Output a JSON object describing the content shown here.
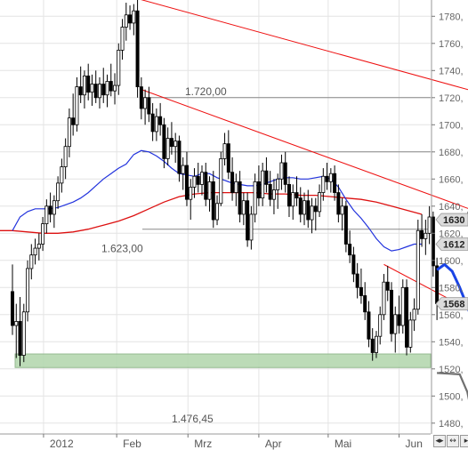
{
  "chart_data": {
    "type": "candlestick",
    "x_ticks": [
      "2012",
      "Feb",
      "Mrz",
      "Apr",
      "Mai",
      "Jun"
    ],
    "y_ticks": [
      "1780",
      "1760",
      "1740",
      "1720",
      "1700",
      "1680",
      "1660",
      "1640",
      "1620",
      "1600",
      "1580",
      "1560",
      "1540",
      "1520",
      "1500",
      "1480"
    ],
    "y_tick_labels_shown": [
      "1780,",
      "1760,",
      "1740,",
      "1720,",
      "1700,",
      "1680,",
      "1660,",
      "1640,",
      "1620,",
      "1600,",
      "1580,",
      "1560,",
      "1540,",
      "1520,",
      "1500,",
      "1480,"
    ],
    "ylim": [
      1472,
      1792
    ],
    "horizontal_levels": [
      {
        "value": 1720.0,
        "label": "1.720,00"
      },
      {
        "value": 1680.0,
        "label": ""
      },
      {
        "value": 1623.0,
        "label": "1.623,00"
      }
    ],
    "bottom_label": "1.476,45",
    "support_zone": {
      "from": 1521,
      "to": 1531
    },
    "price_tags": [
      {
        "value": 1630,
        "label": "1630"
      },
      {
        "value": 1612,
        "label": "1612"
      },
      {
        "value": 1568,
        "label": "1568"
      }
    ],
    "candles": [
      {
        "c": "dec28",
        "o": 1577,
        "h": 1597,
        "l": 1545,
        "cl": 1552
      },
      {
        "c": "dec31",
        "o": 1552,
        "h": 1568,
        "l": 1528,
        "cl": 1555
      },
      {
        "c": "jan02",
        "o": 1555,
        "h": 1573,
        "l": 1522,
        "cl": 1530
      },
      {
        "c": "jan03",
        "o": 1530,
        "h": 1568,
        "l": 1525,
        "cl": 1562
      },
      {
        "c": "jan04",
        "o": 1562,
        "h": 1600,
        "l": 1555,
        "cl": 1594
      },
      {
        "c": "jan05",
        "o": 1594,
        "h": 1612,
        "l": 1586,
        "cl": 1604
      },
      {
        "c": "jan06",
        "o": 1604,
        "h": 1616,
        "l": 1597,
        "cl": 1609
      },
      {
        "c": "jan09",
        "o": 1609,
        "h": 1620,
        "l": 1600,
        "cl": 1612
      },
      {
        "c": "jan10",
        "o": 1612,
        "h": 1632,
        "l": 1607,
        "cl": 1627
      },
      {
        "c": "jan11",
        "o": 1627,
        "h": 1645,
        "l": 1620,
        "cl": 1640
      },
      {
        "c": "jan12",
        "o": 1640,
        "h": 1650,
        "l": 1628,
        "cl": 1634
      },
      {
        "c": "jan13",
        "o": 1634,
        "h": 1648,
        "l": 1624,
        "cl": 1644
      },
      {
        "c": "jan16",
        "o": 1644,
        "h": 1662,
        "l": 1638,
        "cl": 1657
      },
      {
        "c": "jan17",
        "o": 1657,
        "h": 1675,
        "l": 1650,
        "cl": 1669
      },
      {
        "c": "jan18",
        "o": 1669,
        "h": 1690,
        "l": 1660,
        "cl": 1684
      },
      {
        "c": "jan19",
        "o": 1684,
        "h": 1712,
        "l": 1676,
        "cl": 1705
      },
      {
        "c": "jan20",
        "o": 1705,
        "h": 1723,
        "l": 1692,
        "cl": 1700
      },
      {
        "c": "jan23",
        "o": 1700,
        "h": 1735,
        "l": 1695,
        "cl": 1728
      },
      {
        "c": "jan24",
        "o": 1728,
        "h": 1743,
        "l": 1716,
        "cl": 1722
      },
      {
        "c": "jan25",
        "o": 1722,
        "h": 1740,
        "l": 1712,
        "cl": 1736
      },
      {
        "c": "jan26",
        "o": 1736,
        "h": 1745,
        "l": 1718,
        "cl": 1724
      },
      {
        "c": "jan27",
        "o": 1724,
        "h": 1737,
        "l": 1714,
        "cl": 1730
      },
      {
        "c": "jan30",
        "o": 1730,
        "h": 1740,
        "l": 1716,
        "cl": 1720
      },
      {
        "c": "jan31",
        "o": 1720,
        "h": 1735,
        "l": 1712,
        "cl": 1730
      },
      {
        "c": "feb01",
        "o": 1730,
        "h": 1742,
        "l": 1716,
        "cl": 1722
      },
      {
        "c": "feb02",
        "o": 1722,
        "h": 1737,
        "l": 1713,
        "cl": 1732
      },
      {
        "c": "feb03",
        "o": 1732,
        "h": 1745,
        "l": 1721,
        "cl": 1725
      },
      {
        "c": "feb06",
        "o": 1725,
        "h": 1738,
        "l": 1715,
        "cl": 1729
      },
      {
        "c": "feb07",
        "o": 1729,
        "h": 1760,
        "l": 1722,
        "cl": 1755
      },
      {
        "c": "feb08",
        "o": 1755,
        "h": 1778,
        "l": 1748,
        "cl": 1772
      },
      {
        "c": "feb09",
        "o": 1772,
        "h": 1790,
        "l": 1762,
        "cl": 1781
      },
      {
        "c": "feb10",
        "o": 1781,
        "h": 1788,
        "l": 1770,
        "cl": 1775
      },
      {
        "c": "feb13",
        "o": 1775,
        "h": 1789,
        "l": 1766,
        "cl": 1784
      },
      {
        "c": "feb14",
        "o": 1784,
        "h": 1792,
        "l": 1720,
        "cl": 1728
      },
      {
        "c": "feb15",
        "o": 1728,
        "h": 1735,
        "l": 1704,
        "cl": 1712
      },
      {
        "c": "feb16",
        "o": 1712,
        "h": 1726,
        "l": 1700,
        "cl": 1720
      },
      {
        "c": "feb17",
        "o": 1720,
        "h": 1728,
        "l": 1702,
        "cl": 1708
      },
      {
        "c": "feb20",
        "o": 1708,
        "h": 1716,
        "l": 1688,
        "cl": 1695
      },
      {
        "c": "feb21",
        "o": 1695,
        "h": 1712,
        "l": 1688,
        "cl": 1706
      },
      {
        "c": "feb22",
        "o": 1706,
        "h": 1716,
        "l": 1692,
        "cl": 1700
      },
      {
        "c": "feb23",
        "o": 1700,
        "h": 1705,
        "l": 1668,
        "cl": 1675
      },
      {
        "c": "feb24",
        "o": 1675,
        "h": 1698,
        "l": 1670,
        "cl": 1690
      },
      {
        "c": "feb27",
        "o": 1690,
        "h": 1702,
        "l": 1678,
        "cl": 1684
      },
      {
        "c": "feb28",
        "o": 1684,
        "h": 1694,
        "l": 1672,
        "cl": 1688
      },
      {
        "c": "feb29",
        "o": 1688,
        "h": 1692,
        "l": 1658,
        "cl": 1664
      },
      {
        "c": "mrz01",
        "o": 1664,
        "h": 1676,
        "l": 1652,
        "cl": 1670
      },
      {
        "c": "mrz02",
        "o": 1670,
        "h": 1680,
        "l": 1640,
        "cl": 1645
      },
      {
        "c": "mrz05",
        "o": 1645,
        "h": 1660,
        "l": 1630,
        "cl": 1654
      },
      {
        "c": "mrz06",
        "o": 1654,
        "h": 1668,
        "l": 1646,
        "cl": 1662
      },
      {
        "c": "mrz07",
        "o": 1662,
        "h": 1672,
        "l": 1650,
        "cl": 1656
      },
      {
        "c": "mrz08",
        "o": 1656,
        "h": 1670,
        "l": 1648,
        "cl": 1665
      },
      {
        "c": "mrz09",
        "o": 1665,
        "h": 1672,
        "l": 1640,
        "cl": 1645
      },
      {
        "c": "mrz12",
        "o": 1645,
        "h": 1662,
        "l": 1636,
        "cl": 1658
      },
      {
        "c": "mrz13",
        "o": 1658,
        "h": 1666,
        "l": 1624,
        "cl": 1630
      },
      {
        "c": "mrz14",
        "o": 1630,
        "h": 1648,
        "l": 1626,
        "cl": 1642
      },
      {
        "c": "mrz15",
        "o": 1642,
        "h": 1680,
        "l": 1640,
        "cl": 1675
      },
      {
        "c": "mrz16",
        "o": 1675,
        "h": 1694,
        "l": 1670,
        "cl": 1686
      },
      {
        "c": "mrz19",
        "o": 1686,
        "h": 1696,
        "l": 1660,
        "cl": 1665
      },
      {
        "c": "mrz20",
        "o": 1665,
        "h": 1676,
        "l": 1644,
        "cl": 1650
      },
      {
        "c": "mrz21",
        "o": 1650,
        "h": 1664,
        "l": 1640,
        "cl": 1658
      },
      {
        "c": "mrz22",
        "o": 1658,
        "h": 1666,
        "l": 1628,
        "cl": 1634
      },
      {
        "c": "mrz23",
        "o": 1634,
        "h": 1650,
        "l": 1626,
        "cl": 1644
      },
      {
        "c": "mrz26",
        "o": 1644,
        "h": 1650,
        "l": 1610,
        "cl": 1615
      },
      {
        "c": "mrz27",
        "o": 1615,
        "h": 1640,
        "l": 1608,
        "cl": 1634
      },
      {
        "c": "mrz28",
        "o": 1634,
        "h": 1664,
        "l": 1628,
        "cl": 1658
      },
      {
        "c": "mrz29",
        "o": 1658,
        "h": 1670,
        "l": 1640,
        "cl": 1646
      },
      {
        "c": "mrz30",
        "o": 1646,
        "h": 1672,
        "l": 1640,
        "cl": 1666
      },
      {
        "c": "apr02",
        "o": 1666,
        "h": 1676,
        "l": 1650,
        "cl": 1656
      },
      {
        "c": "apr03",
        "o": 1656,
        "h": 1666,
        "l": 1640,
        "cl": 1645
      },
      {
        "c": "apr04",
        "o": 1645,
        "h": 1660,
        "l": 1634,
        "cl": 1652
      },
      {
        "c": "apr05",
        "o": 1652,
        "h": 1664,
        "l": 1638,
        "cl": 1660
      },
      {
        "c": "apr10",
        "o": 1660,
        "h": 1678,
        "l": 1652,
        "cl": 1672
      },
      {
        "c": "apr11",
        "o": 1672,
        "h": 1680,
        "l": 1650,
        "cl": 1656
      },
      {
        "c": "apr12",
        "o": 1656,
        "h": 1662,
        "l": 1632,
        "cl": 1640
      },
      {
        "c": "apr13",
        "o": 1640,
        "h": 1656,
        "l": 1630,
        "cl": 1650
      },
      {
        "c": "apr16",
        "o": 1650,
        "h": 1662,
        "l": 1640,
        "cl": 1646
      },
      {
        "c": "apr17",
        "o": 1646,
        "h": 1654,
        "l": 1628,
        "cl": 1634
      },
      {
        "c": "apr18",
        "o": 1634,
        "h": 1650,
        "l": 1626,
        "cl": 1644
      },
      {
        "c": "apr19",
        "o": 1644,
        "h": 1652,
        "l": 1624,
        "cl": 1630
      },
      {
        "c": "apr20",
        "o": 1630,
        "h": 1646,
        "l": 1620,
        "cl": 1640
      },
      {
        "c": "apr23",
        "o": 1640,
        "h": 1646,
        "l": 1622,
        "cl": 1636
      },
      {
        "c": "apr24",
        "o": 1636,
        "h": 1656,
        "l": 1632,
        "cl": 1650
      },
      {
        "c": "apr25",
        "o": 1650,
        "h": 1668,
        "l": 1644,
        "cl": 1662
      },
      {
        "c": "apr26",
        "o": 1662,
        "h": 1672,
        "l": 1652,
        "cl": 1658
      },
      {
        "c": "apr27",
        "o": 1658,
        "h": 1668,
        "l": 1650,
        "cl": 1664
      },
      {
        "c": "apr30",
        "o": 1664,
        "h": 1670,
        "l": 1644,
        "cl": 1650
      },
      {
        "c": "mai02",
        "o": 1650,
        "h": 1656,
        "l": 1628,
        "cl": 1634
      },
      {
        "c": "mai03",
        "o": 1634,
        "h": 1646,
        "l": 1622,
        "cl": 1640
      },
      {
        "c": "mai04",
        "o": 1640,
        "h": 1644,
        "l": 1606,
        "cl": 1612
      },
      {
        "c": "mai07",
        "o": 1612,
        "h": 1622,
        "l": 1598,
        "cl": 1604
      },
      {
        "c": "mai08",
        "o": 1604,
        "h": 1610,
        "l": 1584,
        "cl": 1590
      },
      {
        "c": "mai09",
        "o": 1590,
        "h": 1598,
        "l": 1572,
        "cl": 1580
      },
      {
        "c": "mai10",
        "o": 1580,
        "h": 1594,
        "l": 1568,
        "cl": 1574
      },
      {
        "c": "mai11",
        "o": 1574,
        "h": 1584,
        "l": 1556,
        "cl": 1562
      },
      {
        "c": "mai14",
        "o": 1562,
        "h": 1570,
        "l": 1536,
        "cl": 1542
      },
      {
        "c": "mai15",
        "o": 1542,
        "h": 1550,
        "l": 1526,
        "cl": 1532
      },
      {
        "c": "mai16",
        "o": 1532,
        "h": 1548,
        "l": 1528,
        "cl": 1544
      },
      {
        "c": "mai17",
        "o": 1544,
        "h": 1566,
        "l": 1538,
        "cl": 1560
      },
      {
        "c": "mai18",
        "o": 1560,
        "h": 1590,
        "l": 1556,
        "cl": 1584
      },
      {
        "c": "mai21",
        "o": 1584,
        "h": 1596,
        "l": 1570,
        "cl": 1578
      },
      {
        "c": "mai22",
        "o": 1578,
        "h": 1584,
        "l": 1540,
        "cl": 1546
      },
      {
        "c": "mai23",
        "o": 1546,
        "h": 1566,
        "l": 1532,
        "cl": 1560
      },
      {
        "c": "mai24",
        "o": 1560,
        "h": 1574,
        "l": 1546,
        "cl": 1552
      },
      {
        "c": "mai25",
        "o": 1552,
        "h": 1586,
        "l": 1546,
        "cl": 1580
      },
      {
        "c": "mai29",
        "o": 1580,
        "h": 1586,
        "l": 1530,
        "cl": 1536
      },
      {
        "c": "mai30",
        "o": 1536,
        "h": 1562,
        "l": 1532,
        "cl": 1556
      },
      {
        "c": "mai31",
        "o": 1556,
        "h": 1572,
        "l": 1548,
        "cl": 1564
      },
      {
        "c": "jun01",
        "o": 1564,
        "h": 1630,
        "l": 1560,
        "cl": 1622
      },
      {
        "c": "jun04",
        "o": 1622,
        "h": 1634,
        "l": 1610,
        "cl": 1616
      },
      {
        "c": "jun05",
        "o": 1616,
        "h": 1630,
        "l": 1604,
        "cl": 1620
      },
      {
        "c": "jun06",
        "o": 1620,
        "h": 1640,
        "l": 1612,
        "cl": 1632
      },
      {
        "c": "jun07",
        "o": 1632,
        "h": 1636,
        "l": 1588,
        "cl": 1596
      },
      {
        "c": "jun08",
        "o": 1596,
        "h": 1602,
        "l": 1556,
        "cl": 1568
      }
    ],
    "ma_blue": [
      [
        0,
        1622
      ],
      [
        2,
        1632
      ],
      [
        4,
        1636
      ],
      [
        6,
        1638
      ],
      [
        8,
        1638
      ],
      [
        10,
        1638
      ],
      [
        12,
        1639
      ],
      [
        14,
        1641
      ],
      [
        16,
        1643
      ],
      [
        18,
        1646
      ],
      [
        20,
        1650
      ],
      [
        22,
        1655
      ],
      [
        24,
        1660
      ],
      [
        26,
        1664
      ],
      [
        28,
        1668
      ],
      [
        30,
        1671
      ],
      [
        32,
        1678
      ],
      [
        34,
        1681
      ],
      [
        36,
        1680
      ],
      [
        38,
        1677
      ],
      [
        40,
        1673
      ],
      [
        42,
        1668
      ],
      [
        44,
        1664
      ],
      [
        46,
        1663
      ],
      [
        48,
        1662
      ],
      [
        50,
        1664
      ],
      [
        52,
        1664
      ],
      [
        54,
        1661
      ],
      [
        56,
        1659
      ],
      [
        58,
        1657
      ],
      [
        60,
        1656
      ],
      [
        62,
        1655
      ],
      [
        64,
        1655
      ],
      [
        66,
        1656
      ],
      [
        68,
        1658
      ],
      [
        70,
        1660
      ],
      [
        72,
        1661
      ],
      [
        74,
        1661
      ],
      [
        76,
        1660
      ],
      [
        78,
        1660
      ],
      [
        80,
        1661
      ],
      [
        82,
        1662
      ],
      [
        84,
        1660
      ],
      [
        86,
        1654
      ],
      [
        88,
        1645
      ],
      [
        90,
        1637
      ],
      [
        92,
        1631
      ],
      [
        94,
        1624
      ],
      [
        96,
        1616
      ],
      [
        98,
        1610
      ],
      [
        100,
        1607
      ],
      [
        102,
        1608
      ],
      [
        104,
        1610
      ],
      [
        106,
        1612
      ],
      [
        108,
        1612
      ]
    ],
    "ma_red": [
      [
        -6,
        1622
      ],
      [
        0,
        1622
      ],
      [
        4,
        1621
      ],
      [
        8,
        1620
      ],
      [
        12,
        1620
      ],
      [
        16,
        1621
      ],
      [
        20,
        1623
      ],
      [
        24,
        1626
      ],
      [
        28,
        1629
      ],
      [
        32,
        1633
      ],
      [
        36,
        1638
      ],
      [
        40,
        1643
      ],
      [
        44,
        1647
      ],
      [
        48,
        1649
      ],
      [
        52,
        1650
      ],
      [
        56,
        1650
      ],
      [
        60,
        1650
      ],
      [
        64,
        1650
      ],
      [
        68,
        1649
      ],
      [
        72,
        1649
      ],
      [
        76,
        1648
      ],
      [
        80,
        1648
      ],
      [
        84,
        1647
      ],
      [
        88,
        1646
      ],
      [
        92,
        1645
      ],
      [
        96,
        1643
      ],
      [
        100,
        1640
      ],
      [
        104,
        1637
      ],
      [
        108,
        1634
      ]
    ],
    "trend_lines": [
      {
        "from": [
          33,
          1793
        ],
        "to": [
          150,
          1703
        ]
      },
      {
        "from": [
          34,
          1726
        ],
        "to": [
          150,
          1608
        ]
      },
      {
        "from": [
          98,
          1597
        ],
        "to": [
          150,
          1520
        ]
      }
    ],
    "projections": [
      {
        "color": "#1a44e6",
        "points": [
          [
            112,
            1593
          ],
          [
            114,
            1597
          ],
          [
            116,
            1592
          ],
          [
            118,
            1580
          ],
          [
            120,
            1566
          ],
          [
            122,
            1552
          ],
          [
            124,
            1537
          ]
        ]
      },
      {
        "color": "#707070",
        "points": [
          [
            114,
            1628
          ],
          [
            119,
            1628
          ],
          [
            126,
            1668
          ]
        ]
      },
      {
        "color": "#707070",
        "points": [
          [
            112,
            1517
          ],
          [
            118,
            1516
          ],
          [
            120,
            1503
          ],
          [
            122,
            1476
          ]
        ]
      }
    ]
  },
  "colors": {
    "candle": "#000000",
    "ma_blue": "#2233dd",
    "ma_red": "#dd1111",
    "trend": "#ee1111",
    "zone": "#b5d8b0",
    "level": "#888888",
    "grid": "#e4e4e4"
  },
  "nav": {
    "left": "◂▸",
    "zoom": "↔",
    "right": "▸"
  }
}
